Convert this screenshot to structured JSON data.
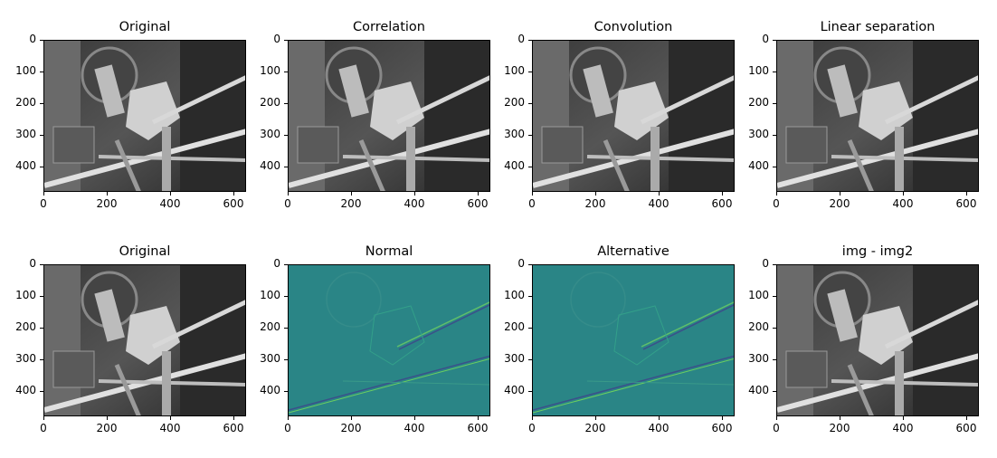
{
  "figure": {
    "panels": [
      {
        "title": "Original",
        "style": "gray"
      },
      {
        "title": "Correlation",
        "style": "gray"
      },
      {
        "title": "Convolution",
        "style": "gray"
      },
      {
        "title": "Linear separation",
        "style": "gray"
      },
      {
        "title": "Original",
        "style": "gray"
      },
      {
        "title": "Normal",
        "style": "viridis"
      },
      {
        "title": "Alternative",
        "style": "viridis"
      },
      {
        "title": "img - img2",
        "style": "gray"
      }
    ],
    "y_ticks": [
      "0",
      "100",
      "200",
      "300",
      "400"
    ],
    "x_ticks": [
      "0",
      "200",
      "400",
      "600"
    ],
    "image_size": {
      "width": 640,
      "height": 480
    },
    "colors": {
      "viridis_base": "#2a8586",
      "gray_dark": "#2b2b2b",
      "gray_light": "#d9d9d9"
    }
  }
}
